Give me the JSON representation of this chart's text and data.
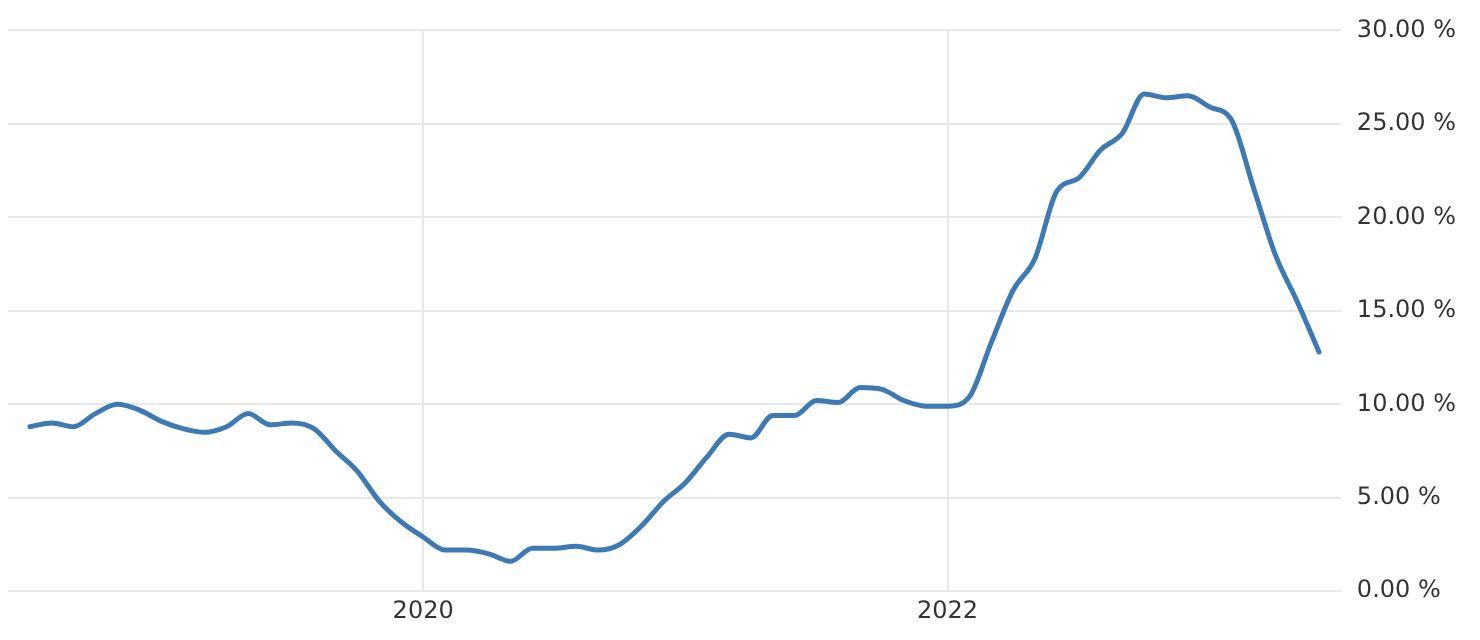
{
  "chart_data": {
    "type": "line",
    "x": [
      "2018-07",
      "2018-08",
      "2018-09",
      "2018-10",
      "2018-11",
      "2018-12",
      "2019-01",
      "2019-02",
      "2019-03",
      "2019-04",
      "2019-05",
      "2019-06",
      "2019-07",
      "2019-08",
      "2019-09",
      "2019-10",
      "2019-11",
      "2019-12",
      "2020-01",
      "2020-02",
      "2020-03",
      "2020-04",
      "2020-05",
      "2020-06",
      "2020-07",
      "2020-08",
      "2020-09",
      "2020-10",
      "2020-11",
      "2020-12",
      "2021-01",
      "2021-02",
      "2021-03",
      "2021-04",
      "2021-05",
      "2021-06",
      "2021-07",
      "2021-08",
      "2021-09",
      "2021-10",
      "2021-11",
      "2021-12",
      "2022-01",
      "2022-02",
      "2022-03",
      "2022-04",
      "2022-05",
      "2022-06",
      "2022-07",
      "2022-08",
      "2022-09",
      "2022-10",
      "2022-11",
      "2022-12",
      "2023-01",
      "2023-02",
      "2023-03",
      "2023-04",
      "2023-05",
      "2023-06"
    ],
    "series": [
      {
        "color": "#3d7ab3",
        "values": [
          8.8,
          9.0,
          8.8,
          9.5,
          10.0,
          9.7,
          9.1,
          8.7,
          8.5,
          8.8,
          9.5,
          8.9,
          9.0,
          8.7,
          7.5,
          6.4,
          4.8,
          3.7,
          2.9,
          2.2,
          2.2,
          2.0,
          1.6,
          2.3,
          2.3,
          2.4,
          2.2,
          2.5,
          3.5,
          4.8,
          5.8,
          7.2,
          8.4,
          8.2,
          9.4,
          9.4,
          10.2,
          10.1,
          10.9,
          10.8,
          10.2,
          9.9,
          9.9,
          10.4,
          13.3,
          16.1,
          17.8,
          21.4,
          22.1,
          23.6,
          24.5,
          26.6,
          26.4,
          26.5,
          25.9,
          25.2,
          21.6,
          18.0,
          15.5,
          12.8
        ]
      }
    ],
    "xlim": [
      "2018-06",
      "2023-07"
    ],
    "xticks": [
      "2020",
      "2022"
    ],
    "ylim": [
      0,
      30
    ],
    "yticks": [
      {
        "value": 0,
        "label": "0.00 %"
      },
      {
        "value": 5,
        "label": "5.00 %"
      },
      {
        "value": 10,
        "label": "10.00 %"
      },
      {
        "value": 15,
        "label": "15.00 %"
      },
      {
        "value": 20,
        "label": "20.00 %"
      },
      {
        "value": 25,
        "label": "25.00 %"
      },
      {
        "value": 30,
        "label": "30.00 %"
      }
    ],
    "grid": true,
    "legend": false,
    "marker": "none",
    "line_style": "solid"
  }
}
